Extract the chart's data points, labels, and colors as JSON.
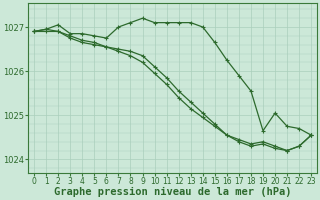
{
  "title": "Graphe pression niveau de la mer (hPa)",
  "xlabel_hours": [
    0,
    1,
    2,
    3,
    4,
    5,
    6,
    7,
    8,
    9,
    10,
    11,
    12,
    13,
    14,
    15,
    16,
    17,
    18,
    19,
    20,
    21,
    22,
    23
  ],
  "series1": [
    1026.9,
    1026.95,
    1026.9,
    1026.75,
    1026.65,
    1026.6,
    1026.55,
    1026.5,
    1026.45,
    1026.35,
    1026.1,
    1025.85,
    1025.55,
    1025.3,
    1025.05,
    1024.8,
    1024.55,
    1024.4,
    1024.3,
    1024.35,
    1024.25,
    1024.2,
    1024.3,
    1024.55
  ],
  "series2": [
    1026.9,
    1026.95,
    1027.05,
    1026.85,
    1026.85,
    1026.8,
    1026.75,
    1027.0,
    1027.1,
    1027.2,
    1027.1,
    1027.1,
    1027.1,
    1027.1,
    1027.0,
    1026.65,
    1026.25,
    1025.9,
    1025.55,
    1024.65,
    1025.05,
    1024.75,
    1024.7,
    1024.55
  ],
  "series3": [
    1026.9,
    1026.9,
    1026.9,
    1026.8,
    1026.7,
    1026.65,
    1026.55,
    1026.45,
    1026.35,
    1026.2,
    1025.95,
    1025.7,
    1025.4,
    1025.15,
    1024.95,
    1024.75,
    1024.55,
    1024.45,
    1024.35,
    1024.4,
    1024.3,
    1024.2,
    1024.3,
    1024.55
  ],
  "line_color": "#2d6a2d",
  "bg_color": "#cce8d8",
  "grid_color": "#aacfbc",
  "ylim": [
    1023.7,
    1027.55
  ],
  "yticks": [
    1024,
    1025,
    1026,
    1027
  ],
  "title_fontsize": 7.5,
  "tick_fontsize": 6.0
}
